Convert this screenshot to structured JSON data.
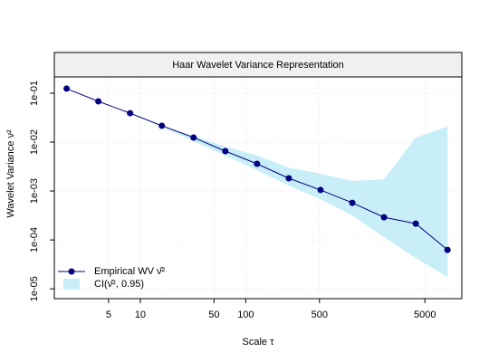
{
  "chart_data": {
    "type": "line",
    "title": "Haar Wavelet Variance Representation",
    "xlabel": "Scale τ",
    "ylabel": "Wavelet Variance ν²",
    "x": [
      2,
      4,
      8,
      16,
      32,
      64,
      128,
      256,
      512,
      1024,
      2048,
      4096,
      8192
    ],
    "series": [
      {
        "name": "Empirical WV ν̂²",
        "color": "#000080",
        "values": [
          0.124,
          0.068,
          0.039,
          0.0216,
          0.0124,
          0.00653,
          0.0036,
          0.00182,
          0.00105,
          0.000574,
          0.00029,
          0.000215,
          6.25e-05
        ]
      }
    ],
    "ci": {
      "name": "CI(ν̂², 0.95)",
      "color": "#c8eef8",
      "upper": [
        0.124,
        0.068,
        0.039,
        0.0216,
        0.0135,
        0.0081,
        0.0053,
        0.003,
        0.00225,
        0.0016,
        0.00174,
        0.0124,
        0.0207
      ],
      "lower": [
        0.124,
        0.068,
        0.0375,
        0.0207,
        0.0104,
        0.0053,
        0.00267,
        0.00129,
        0.00068,
        0.000316,
        0.000114,
        4.27e-05,
        1.74e-05
      ]
    },
    "xlim": [
      1.53,
      11200
    ],
    "ylim": [
      6.3e-06,
      0.215
    ],
    "xticks": [
      5,
      10,
      50,
      100,
      500,
      5000
    ],
    "yticks": [
      {
        "value": 0.1,
        "label": "1e-01"
      },
      {
        "value": 0.01,
        "label": "1e-02"
      },
      {
        "value": 0.001,
        "label": "1e-03"
      },
      {
        "value": 0.0001,
        "label": "1e-04"
      },
      {
        "value": 1e-05,
        "label": "1e-05"
      }
    ],
    "xscale": "log",
    "yscale": "log",
    "grid": true,
    "legend": "bottomleft"
  }
}
